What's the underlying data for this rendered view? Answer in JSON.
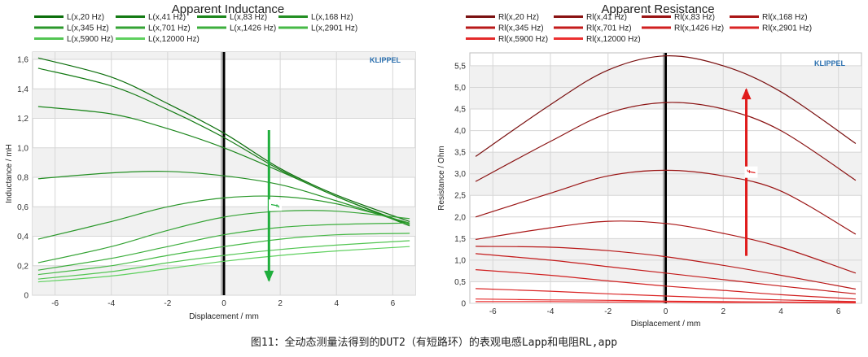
{
  "chart_data": [
    {
      "type": "line",
      "title": "Apparent Inductance",
      "xlabel": "Displacement / mm",
      "ylabel": "Inductance / mH",
      "xlim": [
        -6.8,
        6.8
      ],
      "ylim": [
        0,
        1.65
      ],
      "x_ticks": [
        "-6",
        "-4",
        "-2",
        "0",
        "2",
        "4",
        "6"
      ],
      "y_ticks": [
        "0",
        "0,2",
        "0,4",
        "0,6",
        "0,8",
        "1,0",
        "1,2",
        "1,4",
        "1,6"
      ],
      "brand": "KLIPPEL",
      "annotation": "f",
      "arrow_direction": "down",
      "legend_position": "top",
      "colors": [
        "#0b6e0b",
        "#137a13",
        "#1c861c",
        "#238f23",
        "#2b982b",
        "#34a334",
        "#3cae3c",
        "#46b946",
        "#52c552",
        "#5ed05e",
        "#6ad96a"
      ],
      "x": [
        -6.6,
        -4,
        -2,
        0,
        2,
        4,
        6.6
      ],
      "series": [
        {
          "name": "L(x,20 Hz)",
          "values": [
            1.61,
            1.48,
            1.3,
            1.1,
            0.86,
            0.68,
            0.5
          ]
        },
        {
          "name": "L(x,41 Hz)",
          "values": [
            1.54,
            1.42,
            1.26,
            1.07,
            0.85,
            0.67,
            0.48
          ]
        },
        {
          "name": "L(x,83 Hz)",
          "values": [
            1.28,
            1.23,
            1.13,
            1.0,
            0.84,
            0.67,
            0.47
          ]
        },
        {
          "name": "L(x,168 Hz)",
          "values": [
            0.79,
            0.83,
            0.84,
            0.81,
            0.75,
            0.64,
            0.48
          ]
        },
        {
          "name": "L(x,345 Hz)",
          "values": [
            0.38,
            0.5,
            0.6,
            0.66,
            0.67,
            0.62,
            0.49
          ]
        },
        {
          "name": "L(x,701 Hz)",
          "values": [
            0.22,
            0.33,
            0.44,
            0.53,
            0.57,
            0.57,
            0.52
          ]
        },
        {
          "name": "L(x,1426 Hz)",
          "values": [
            0.17,
            0.25,
            0.33,
            0.41,
            0.46,
            0.48,
            0.49
          ]
        },
        {
          "name": "L(x,2901 Hz)",
          "values": [
            0.14,
            0.2,
            0.27,
            0.33,
            0.38,
            0.41,
            0.42
          ]
        },
        {
          "name": "L(x,5900 Hz)",
          "values": [
            0.11,
            0.16,
            0.22,
            0.27,
            0.31,
            0.34,
            0.37
          ]
        },
        {
          "name": "L(x,12000 Hz)",
          "values": [
            0.09,
            0.13,
            0.18,
            0.23,
            0.27,
            0.3,
            0.33
          ]
        }
      ]
    },
    {
      "type": "line",
      "title": "Apparent Resistance",
      "xlabel": "Displacement / mm",
      "ylabel": "Resistance / Ohm",
      "xlim": [
        -6.8,
        6.8
      ],
      "ylim": [
        0,
        5.8
      ],
      "x_ticks": [
        "-6",
        "-4",
        "-2",
        "0",
        "2",
        "4",
        "6"
      ],
      "y_ticks": [
        "0",
        "0,5",
        "1,0",
        "1,5",
        "2,0",
        "2,5",
        "3,0",
        "3,5",
        "4,0",
        "4,5",
        "5,0",
        "5,5"
      ],
      "brand": "KLIPPEL",
      "annotation": "f",
      "arrow_direction": "up",
      "legend_position": "top",
      "colors": [
        "#7a1010",
        "#8a1212",
        "#9a1414",
        "#aa1616",
        "#b81818",
        "#c41b1b",
        "#d01f1f",
        "#da2424",
        "#e42a2a",
        "#ec3030"
      ],
      "x": [
        -6.6,
        -4,
        -2,
        0,
        2,
        4,
        6.6
      ],
      "series": [
        {
          "name": "Rl(x,20 Hz)",
          "values": [
            3.4,
            4.6,
            5.4,
            5.73,
            5.5,
            4.9,
            3.7
          ]
        },
        {
          "name": "Rl(x,41 Hz)",
          "values": [
            2.82,
            3.75,
            4.4,
            4.65,
            4.5,
            4.0,
            2.85
          ]
        },
        {
          "name": "Rl(x,83 Hz)",
          "values": [
            2.0,
            2.55,
            2.95,
            3.08,
            2.95,
            2.6,
            1.6
          ]
        },
        {
          "name": "Rl(x,168 Hz)",
          "values": [
            1.48,
            1.75,
            1.9,
            1.85,
            1.62,
            1.3,
            0.7
          ]
        },
        {
          "name": "Rl(x,345 Hz)",
          "values": [
            1.32,
            1.3,
            1.22,
            1.08,
            0.88,
            0.65,
            0.33
          ]
        },
        {
          "name": "Rl(x,701 Hz)",
          "values": [
            1.15,
            1.0,
            0.85,
            0.7,
            0.55,
            0.4,
            0.22
          ]
        },
        {
          "name": "Rl(x,1426 Hz)",
          "values": [
            0.78,
            0.65,
            0.52,
            0.4,
            0.3,
            0.2,
            0.1
          ]
        },
        {
          "name": "Rl(x,2901 Hz)",
          "values": [
            0.34,
            0.28,
            0.22,
            0.17,
            0.12,
            0.08,
            0.04
          ]
        },
        {
          "name": "Rl(x,5900 Hz)",
          "values": [
            0.1,
            0.08,
            0.07,
            0.05,
            0.04,
            0.03,
            0.02
          ]
        },
        {
          "name": "Rl(x,12000 Hz)",
          "values": [
            0.04,
            0.04,
            0.03,
            0.03,
            0.02,
            0.02,
            0.01
          ]
        }
      ]
    }
  ],
  "caption": "图11：全动态测量法得到的DUT2（有短路环）的表观电感Lapp和电阻RL,app"
}
